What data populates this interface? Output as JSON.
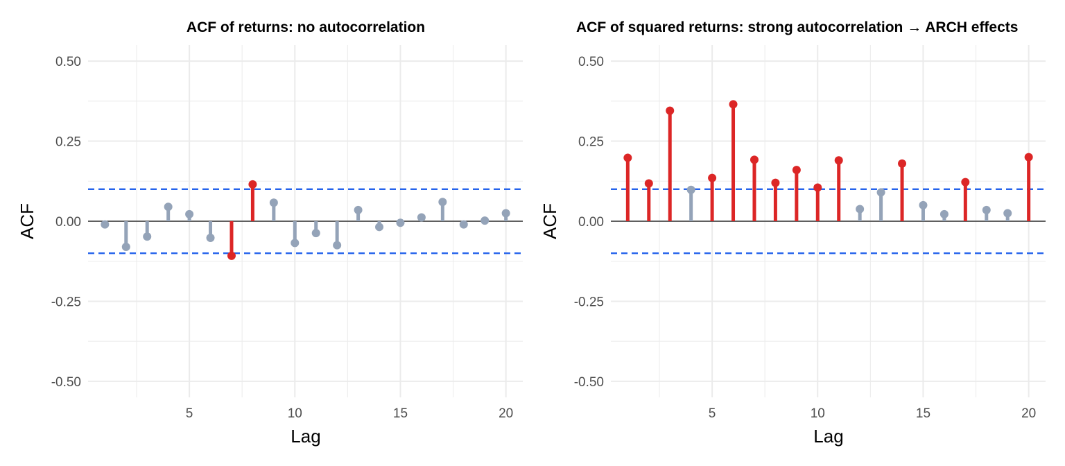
{
  "colors": {
    "significant": "#dc2626",
    "not_significant": "#94a3b8",
    "threshold": "#2563eb",
    "zero_line": "#333333",
    "grid": "#ebebeb"
  },
  "chart_data": [
    {
      "type": "lollipop",
      "title": "ACF of returns: no autocorrelation",
      "xlabel": "Lag",
      "ylabel": "ACF",
      "xlim": [
        0.2,
        20.8
      ],
      "ylim": [
        -0.55,
        0.55
      ],
      "x_ticks": [
        5,
        10,
        15,
        20
      ],
      "y_ticks": [
        0.5,
        0.25,
        0,
        -0.25,
        -0.5
      ],
      "y_tick_labels": [
        "0.50",
        "0.25",
        "0.00",
        "-0.25",
        "-0.50"
      ],
      "threshold": 0.1,
      "grid": true,
      "lags": [
        1,
        2,
        3,
        4,
        5,
        6,
        7,
        8,
        9,
        10,
        11,
        12,
        13,
        14,
        15,
        16,
        17,
        18,
        19,
        20
      ],
      "values": [
        -0.01,
        -0.08,
        -0.048,
        0.045,
        0.022,
        -0.052,
        -0.108,
        0.115,
        0.058,
        -0.068,
        -0.037,
        -0.075,
        0.035,
        -0.018,
        -0.005,
        0.012,
        0.06,
        -0.01,
        0.002,
        0.025
      ],
      "significant": [
        false,
        false,
        false,
        false,
        false,
        false,
        true,
        true,
        false,
        false,
        false,
        false,
        false,
        false,
        false,
        false,
        false,
        false,
        false,
        false
      ]
    },
    {
      "type": "lollipop",
      "title": "ACF of squared returns: strong autocorrelation → ARCH effects",
      "xlabel": "Lag",
      "ylabel": "ACF",
      "xlim": [
        0.2,
        20.8
      ],
      "ylim": [
        -0.55,
        0.55
      ],
      "x_ticks": [
        5,
        10,
        15,
        20
      ],
      "y_ticks": [
        0.5,
        0.25,
        0,
        -0.25,
        -0.5
      ],
      "y_tick_labels": [
        "0.50",
        "0.25",
        "0.00",
        "-0.25",
        "-0.50"
      ],
      "threshold": 0.1,
      "grid": true,
      "lags": [
        1,
        2,
        3,
        4,
        5,
        6,
        7,
        8,
        9,
        10,
        11,
        12,
        13,
        14,
        15,
        16,
        17,
        18,
        19,
        20
      ],
      "values": [
        0.198,
        0.118,
        0.345,
        0.098,
        0.135,
        0.365,
        0.192,
        0.12,
        0.16,
        0.105,
        0.19,
        0.038,
        0.09,
        0.18,
        0.05,
        0.022,
        0.122,
        0.035,
        0.025,
        0.2
      ],
      "significant": [
        true,
        true,
        true,
        false,
        true,
        true,
        true,
        true,
        true,
        true,
        true,
        false,
        false,
        true,
        false,
        false,
        true,
        false,
        false,
        true
      ]
    }
  ]
}
